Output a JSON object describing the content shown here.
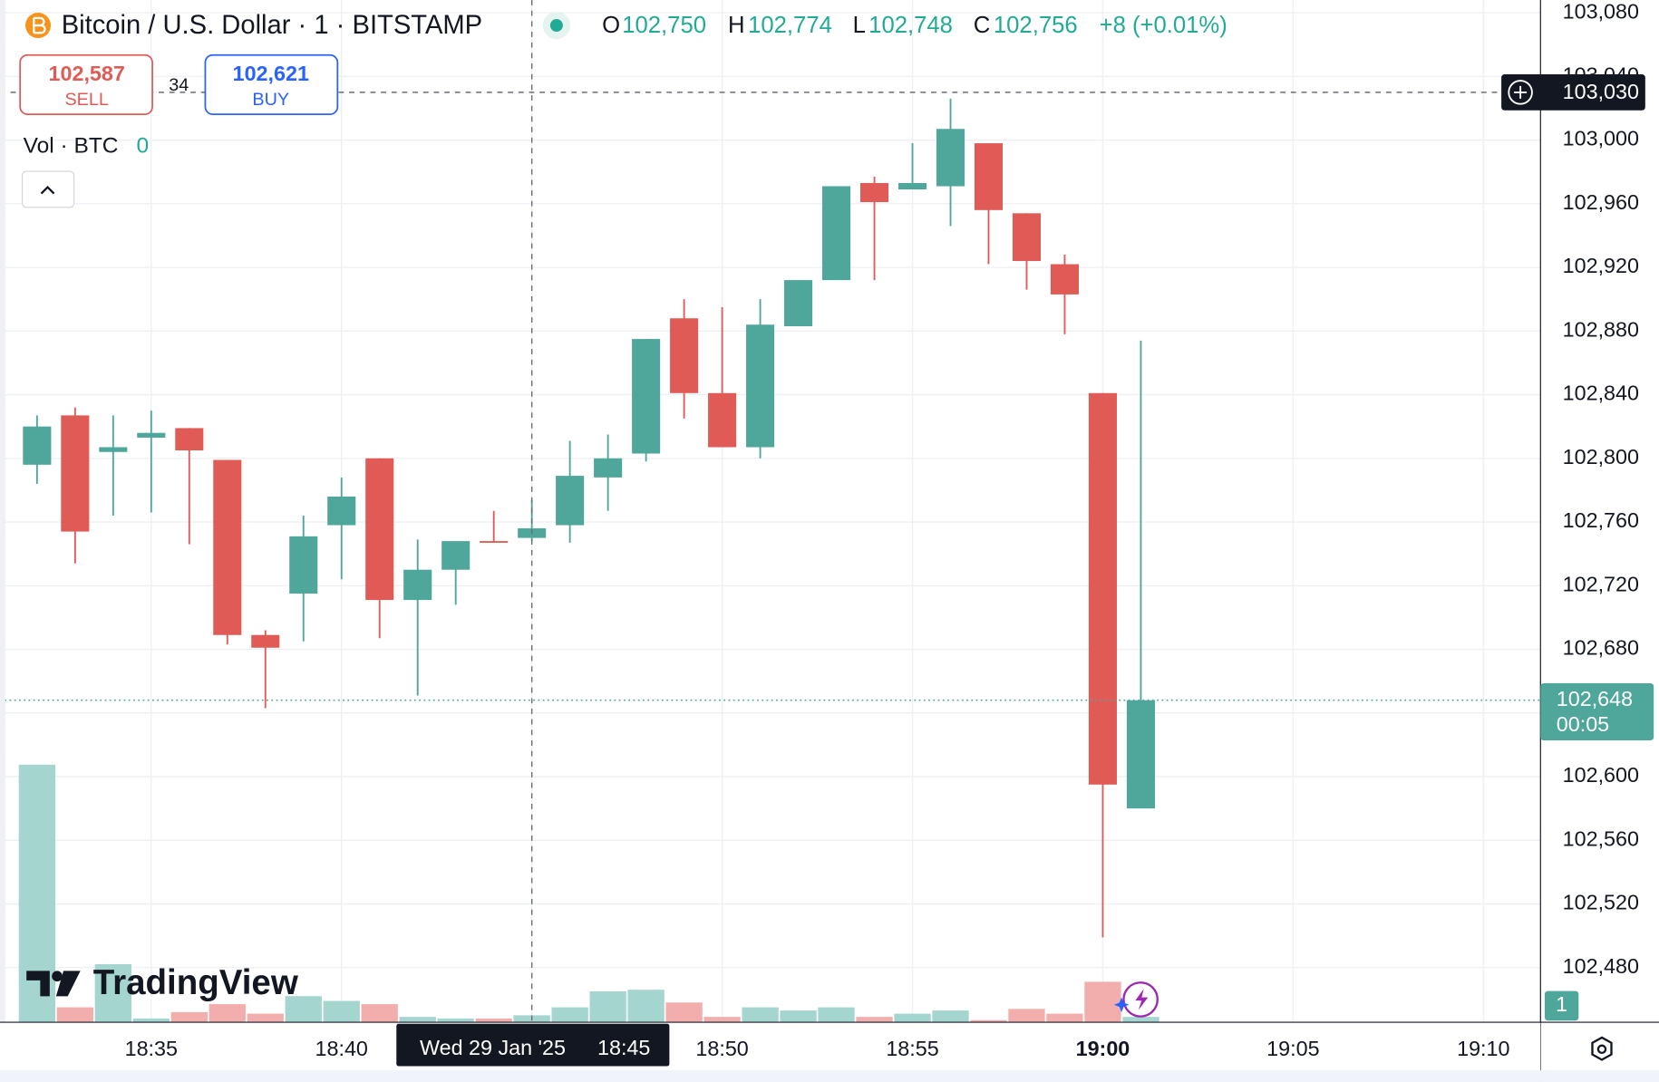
{
  "header": {
    "title": "Bitcoin / U.S. Dollar · 1 · BITSTAMP",
    "ohlc": [
      {
        "key": "O",
        "value": "102,750"
      },
      {
        "key": "H",
        "value": "102,774"
      },
      {
        "key": "L",
        "value": "102,748"
      },
      {
        "key": "C",
        "value": "102,756"
      }
    ],
    "change": "+8 (+0.01%)"
  },
  "trade": {
    "sell_price": "102,587",
    "sell": "SELL",
    "spread": "34",
    "buy_price": "102,621",
    "buy": "BUY"
  },
  "indicator": {
    "name": "Vol · BTC",
    "value": "0"
  },
  "logo": "TradingView",
  "chart_data": {
    "type": "candlestick",
    "categories": [
      "18:32",
      "18:33",
      "18:34",
      "18:35",
      "18:36",
      "18:37",
      "18:38",
      "18:39",
      "18:40",
      "18:41",
      "18:42",
      "18:43",
      "18:44",
      "18:45",
      "18:46",
      "18:47",
      "18:48",
      "18:49",
      "18:50",
      "18:51",
      "18:52",
      "18:53",
      "18:54",
      "18:55",
      "18:56",
      "18:57",
      "18:58",
      "18:59",
      "19:00",
      "19:01"
    ],
    "open": [
      102796,
      102827,
      102804,
      102813,
      102819,
      102799,
      102689,
      102715,
      102758,
      102800,
      102711,
      102730,
      102748,
      102750,
      102758,
      102788,
      102803,
      102888,
      102841,
      102807,
      102883,
      102912,
      102973,
      102969,
      102971,
      102998,
      102954,
      102922,
      102841,
      102580
    ],
    "high": [
      102827,
      102832,
      102827,
      102830,
      102819,
      102799,
      102692,
      102764,
      102788,
      102800,
      102749,
      102748,
      102767,
      102774,
      102811,
      102815,
      102875,
      102900,
      102895,
      102900,
      102912,
      102971,
      102977,
      102998,
      103026,
      102998,
      102954,
      102928,
      102841,
      102874
    ],
    "low": [
      102784,
      102734,
      102764,
      102766,
      102746,
      102683,
      102643,
      102685,
      102724,
      102687,
      102651,
      102708,
      102747,
      102748,
      102747,
      102767,
      102798,
      102825,
      102807,
      102800,
      102883,
      102912,
      102912,
      102969,
      102946,
      102922,
      102906,
      102878,
      102499,
      102580
    ],
    "close": [
      102820,
      102754,
      102807,
      102816,
      102805,
      102689,
      102681,
      102751,
      102776,
      102711,
      102730,
      102748,
      102747,
      102756,
      102789,
      102800,
      102875,
      102841,
      102807,
      102884,
      102912,
      102971,
      102961,
      102973,
      103007,
      102956,
      102924,
      102903,
      102595,
      102648
    ],
    "volume": [
      16.1,
      0.9,
      3.6,
      0.2,
      0.6,
      1.1,
      0.5,
      1.6,
      1.3,
      1.1,
      0.3,
      0.2,
      0.2,
      0.4,
      0.9,
      1.9,
      2.0,
      1.2,
      0.3,
      0.9,
      0.7,
      0.9,
      0.3,
      0.5,
      0.7,
      0.1,
      0.8,
      0.5,
      2.5,
      0.3
    ],
    "up_color": "#4fa69a",
    "down_color": "#e15b56",
    "volume_up_color": "#a5d5cf",
    "volume_down_color": "#f2aeac",
    "ylim": [
      102446,
      103088
    ],
    "yticks": [
      {
        "value": 103080,
        "label": "103,080"
      },
      {
        "value": 103040,
        "label": "103,040"
      },
      {
        "value": 103000,
        "label": "103,000"
      },
      {
        "value": 102960,
        "label": "102,960"
      },
      {
        "value": 102920,
        "label": "102,920"
      },
      {
        "value": 102880,
        "label": "102,880"
      },
      {
        "value": 102840,
        "label": "102,840"
      },
      {
        "value": 102800,
        "label": "102,800"
      },
      {
        "value": 102760,
        "label": "102,760"
      },
      {
        "value": 102720,
        "label": "102,720"
      },
      {
        "value": 102680,
        "label": "102,680"
      },
      {
        "value": 102640,
        "label": "102,640"
      },
      {
        "value": 102600,
        "label": "102,600"
      },
      {
        "value": 102560,
        "label": "102,560"
      },
      {
        "value": 102520,
        "label": "102,520"
      },
      {
        "value": 102480,
        "label": "102,480"
      }
    ],
    "vlim": [
      0,
      64
    ],
    "volume_scale_label": 1,
    "xlim": [
      -0.973,
      39.5
    ],
    "xticks": [
      {
        "value": 3,
        "label": "18:35"
      },
      {
        "value": 8,
        "label": "18:40"
      },
      {
        "value": 13,
        "label": "18:45"
      },
      {
        "value": 18,
        "label": "18:50"
      },
      {
        "value": 23,
        "label": "18:55"
      },
      {
        "value": 28,
        "label": "19:00",
        "bold": true
      },
      {
        "value": 33,
        "label": "19:05"
      },
      {
        "value": 38,
        "label": "19:10"
      }
    ],
    "grid": true,
    "crosshair": {
      "price": {
        "value": 103030,
        "label": "103,030"
      },
      "time": "18:45",
      "date": "Wed 29 Jan '25"
    },
    "last_price": {
      "value": 102648,
      "label": "102,648",
      "countdown": "00:05"
    }
  }
}
